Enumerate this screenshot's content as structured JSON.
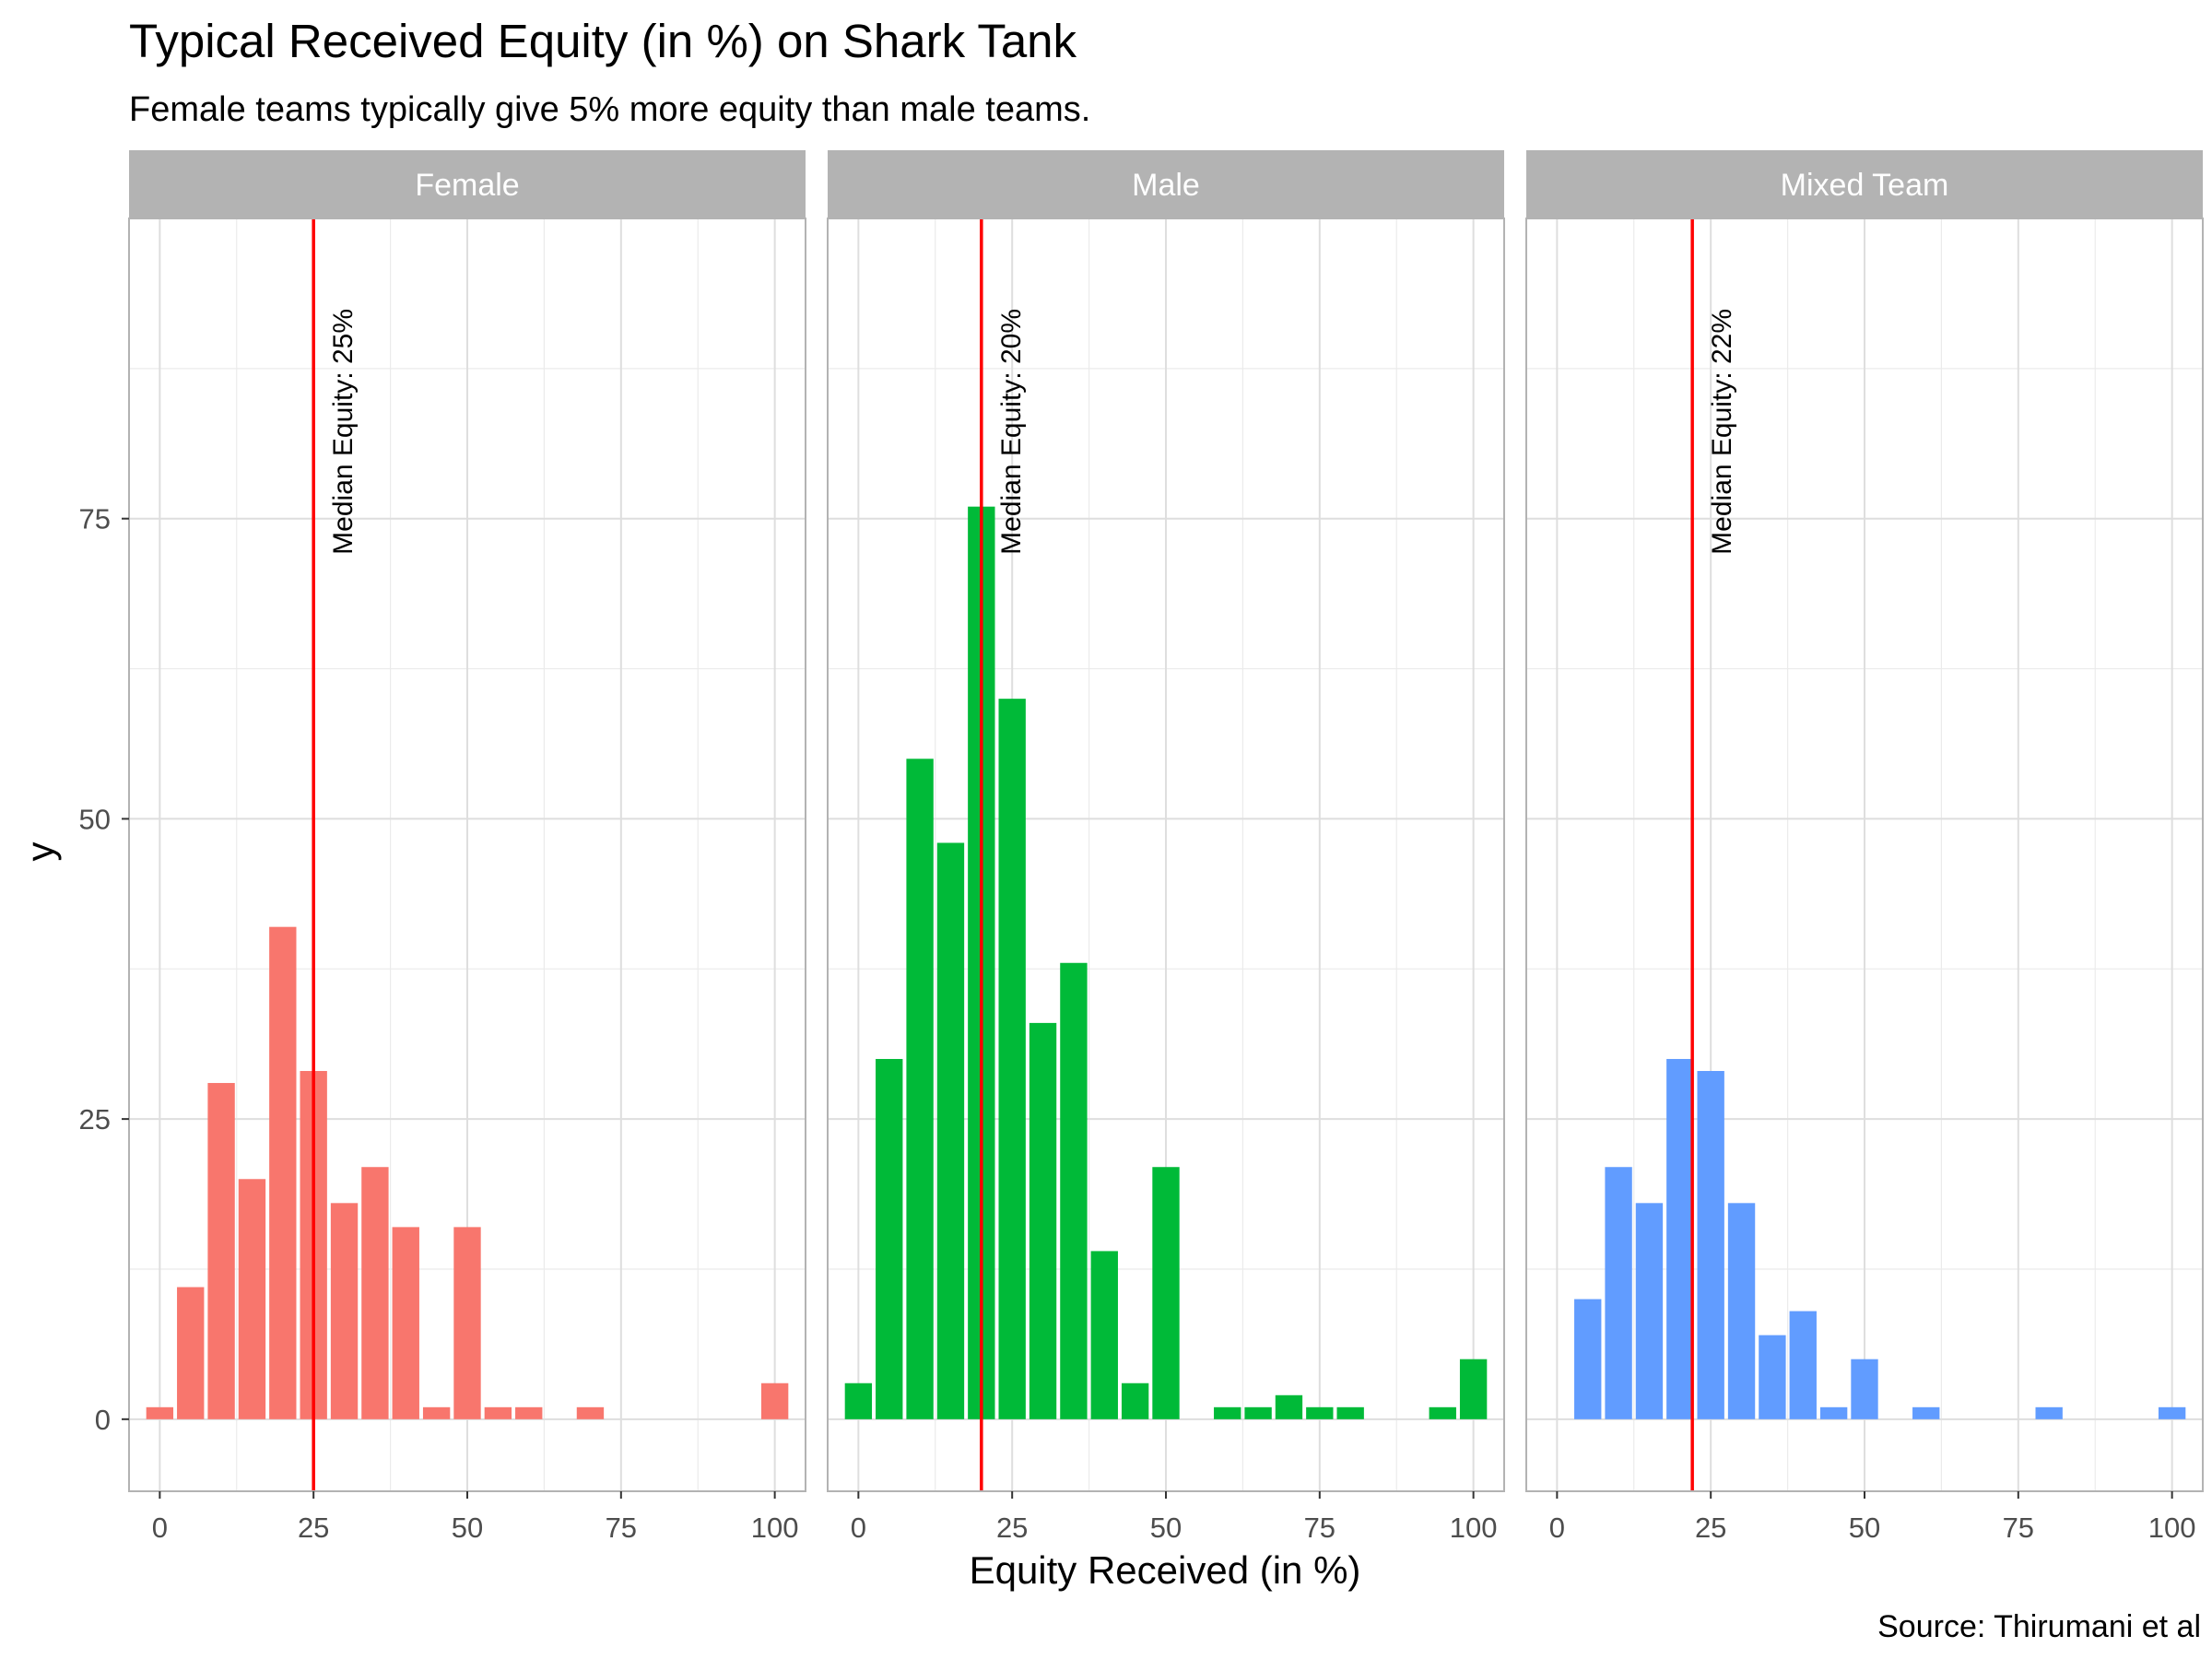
{
  "title": "Typical Received Equity (in %) on Shark Tank",
  "subtitle": "Female teams typically give 5% more equity than male teams.",
  "caption": "Source: Thirumani et al",
  "chart_data": {
    "type": "bar",
    "xlabel": "Equity Received (in %)",
    "ylabel": "y",
    "xlim": [
      -5,
      105
    ],
    "ylim": [
      -6,
      100
    ],
    "x_ticks": [
      0,
      25,
      50,
      75,
      100
    ],
    "y_ticks": [
      0,
      25,
      50,
      75
    ],
    "grid": true,
    "legend": "none",
    "median_line_color": "#ff0000",
    "panels": [
      {
        "name": "Female",
        "color": "#F8766D",
        "median": 25,
        "median_label": "Median Equity: 25%",
        "bars": [
          {
            "x": 0,
            "y": 1
          },
          {
            "x": 5,
            "y": 11
          },
          {
            "x": 10,
            "y": 28
          },
          {
            "x": 15,
            "y": 20
          },
          {
            "x": 20,
            "y": 41
          },
          {
            "x": 25,
            "y": 29
          },
          {
            "x": 30,
            "y": 18
          },
          {
            "x": 35,
            "y": 21
          },
          {
            "x": 40,
            "y": 16
          },
          {
            "x": 45,
            "y": 1
          },
          {
            "x": 50,
            "y": 16
          },
          {
            "x": 55,
            "y": 1
          },
          {
            "x": 60,
            "y": 1
          },
          {
            "x": 70,
            "y": 1
          },
          {
            "x": 100,
            "y": 3
          }
        ]
      },
      {
        "name": "Male",
        "color": "#00BA38",
        "median": 20,
        "median_label": "Median Equity: 20%",
        "bars": [
          {
            "x": 0,
            "y": 3
          },
          {
            "x": 5,
            "y": 30
          },
          {
            "x": 10,
            "y": 55
          },
          {
            "x": 15,
            "y": 48
          },
          {
            "x": 20,
            "y": 76
          },
          {
            "x": 25,
            "y": 60
          },
          {
            "x": 30,
            "y": 33
          },
          {
            "x": 35,
            "y": 38
          },
          {
            "x": 40,
            "y": 14
          },
          {
            "x": 45,
            "y": 3
          },
          {
            "x": 50,
            "y": 21
          },
          {
            "x": 60,
            "y": 1
          },
          {
            "x": 65,
            "y": 1
          },
          {
            "x": 70,
            "y": 2
          },
          {
            "x": 75,
            "y": 1
          },
          {
            "x": 80,
            "y": 1
          },
          {
            "x": 95,
            "y": 1
          },
          {
            "x": 100,
            "y": 5
          }
        ]
      },
      {
        "name": "Mixed Team",
        "color": "#619CFF",
        "median": 22,
        "median_label": "Median Equity: 22%",
        "bars": [
          {
            "x": 5,
            "y": 10
          },
          {
            "x": 10,
            "y": 21
          },
          {
            "x": 15,
            "y": 18
          },
          {
            "x": 20,
            "y": 30
          },
          {
            "x": 25,
            "y": 29
          },
          {
            "x": 30,
            "y": 18
          },
          {
            "x": 35,
            "y": 7
          },
          {
            "x": 40,
            "y": 9
          },
          {
            "x": 45,
            "y": 1
          },
          {
            "x": 50,
            "y": 5
          },
          {
            "x": 60,
            "y": 1
          },
          {
            "x": 80,
            "y": 1
          },
          {
            "x": 100,
            "y": 1
          }
        ]
      }
    ]
  }
}
